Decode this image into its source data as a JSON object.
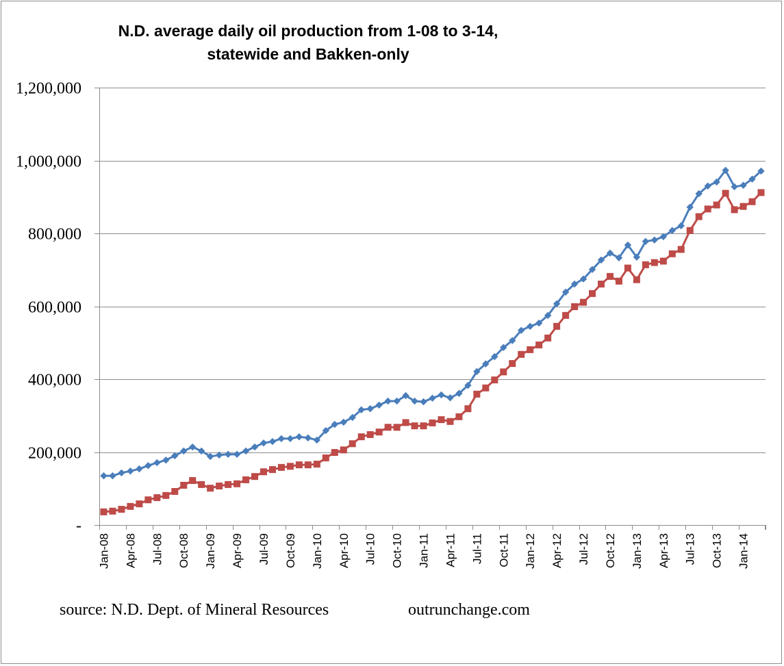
{
  "chart_data": {
    "type": "line",
    "title": "N.D. average daily oil production from 1-08 to 3-14,",
    "subtitle": "statewide and Bakken-only",
    "xlabel": "",
    "ylabel": "",
    "ylim": [
      0,
      1200000
    ],
    "yticks": [
      {
        "value": 0,
        "label": "-"
      },
      {
        "value": 200000,
        "label": "200,000"
      },
      {
        "value": 400000,
        "label": "400,000"
      },
      {
        "value": 600000,
        "label": "600,000"
      },
      {
        "value": 800000,
        "label": "800,000"
      },
      {
        "value": 1000000,
        "label": "1,000,000"
      },
      {
        "value": 1200000,
        "label": "1,200,000"
      }
    ],
    "grid": true,
    "legend": "none",
    "x_start": "Jan-08",
    "x": [
      "Jan-08",
      "Feb-08",
      "Mar-08",
      "Apr-08",
      "May-08",
      "Jun-08",
      "Jul-08",
      "Aug-08",
      "Sep-08",
      "Oct-08",
      "Nov-08",
      "Dec-08",
      "Jan-09",
      "Feb-09",
      "Mar-09",
      "Apr-09",
      "May-09",
      "Jun-09",
      "Jul-09",
      "Aug-09",
      "Sep-09",
      "Oct-09",
      "Nov-09",
      "Dec-09",
      "Jan-10",
      "Feb-10",
      "Mar-10",
      "Apr-10",
      "May-10",
      "Jun-10",
      "Jul-10",
      "Aug-10",
      "Sep-10",
      "Oct-10",
      "Nov-10",
      "Dec-10",
      "Jan-11",
      "Feb-11",
      "Mar-11",
      "Apr-11",
      "May-11",
      "Jun-11",
      "Jul-11",
      "Aug-11",
      "Sep-11",
      "Oct-11",
      "Nov-11",
      "Dec-11",
      "Jan-12",
      "Feb-12",
      "Mar-12",
      "Apr-12",
      "May-12",
      "Jun-12",
      "Jul-12",
      "Aug-12",
      "Sep-12",
      "Oct-12",
      "Nov-12",
      "Dec-12",
      "Jan-13",
      "Feb-13",
      "Mar-13",
      "Apr-13",
      "May-13",
      "Jun-13",
      "Jul-13",
      "Aug-13",
      "Sep-13",
      "Oct-13",
      "Nov-13",
      "Dec-13",
      "Jan-14",
      "Feb-14",
      "Mar-14"
    ],
    "xtick_labels": [
      "Jan-08",
      "Apr-08",
      "Jul-08",
      "Oct-08",
      "Jan-09",
      "Apr-09",
      "Jul-09",
      "Oct-09",
      "Jan-10",
      "Apr-10",
      "Jul-10",
      "Oct-10",
      "Jan-11",
      "Apr-11",
      "Jul-11",
      "Oct-11",
      "Jan-12",
      "Apr-12",
      "Jul-12",
      "Oct-12",
      "Jan-13",
      "Apr-13",
      "Jul-13",
      "Oct-13",
      "Jan-14"
    ],
    "series": [
      {
        "name": "Statewide",
        "color": "#4A7EBB",
        "marker": "diamond",
        "values": [
          135000,
          135000,
          143000,
          148000,
          154000,
          163000,
          171000,
          178000,
          190000,
          203000,
          214000,
          203000,
          188000,
          192000,
          194000,
          194000,
          203000,
          214000,
          225000,
          229000,
          237000,
          237000,
          242000,
          239000,
          233000,
          259000,
          276000,
          282000,
          295000,
          316000,
          319000,
          329000,
          340000,
          340000,
          355000,
          340000,
          338000,
          348000,
          357000,
          349000,
          361000,
          383000,
          421000,
          442000,
          462000,
          487000,
          506000,
          534000,
          545000,
          554000,
          575000,
          607000,
          639000,
          661000,
          675000,
          701000,
          727000,
          746000,
          733000,
          768000,
          735000,
          778000,
          782000,
          791000,
          808000,
          821000,
          872000,
          909000,
          930000,
          941000,
          973000,
          928000,
          932000,
          949000,
          971000
        ]
      },
      {
        "name": "Bakken-only",
        "color": "#BE4B48",
        "marker": "square",
        "values": [
          36000,
          38000,
          43000,
          51000,
          58000,
          69000,
          75000,
          81000,
          92000,
          109000,
          122000,
          111000,
          101000,
          107000,
          111000,
          113000,
          124000,
          133000,
          146000,
          152000,
          158000,
          161000,
          165000,
          165000,
          167000,
          184000,
          199000,
          206000,
          223000,
          242000,
          248000,
          255000,
          268000,
          268000,
          281000,
          272000,
          272000,
          280000,
          289000,
          284000,
          297000,
          319000,
          359000,
          376000,
          398000,
          420000,
          443000,
          468000,
          481000,
          494000,
          513000,
          545000,
          575000,
          599000,
          611000,
          635000,
          661000,
          682000,
          669000,
          705000,
          673000,
          714000,
          720000,
          724000,
          744000,
          756000,
          808000,
          846000,
          867000,
          878000,
          910000,
          865000,
          874000,
          887000,
          912000
        ]
      }
    ],
    "annotations": [
      "source: N.D. Dept. of Mineral Resources",
      "outrunchange.com"
    ]
  },
  "footer": {
    "source": "source: N.D. Dept. of Mineral Resources",
    "site": "outrunchange.com"
  }
}
